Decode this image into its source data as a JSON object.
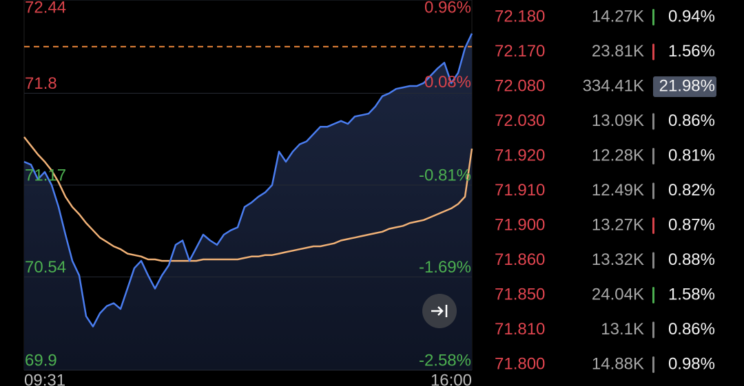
{
  "chart_data": {
    "type": "line",
    "xlim": [
      0,
      65
    ],
    "xticks": [
      {
        "value": 0,
        "label": "09:31"
      },
      {
        "value": 65,
        "label": "16:00"
      }
    ],
    "ylim": [
      69.9,
      72.44
    ],
    "yticks": [
      72.44,
      71.8,
      71.17,
      70.54,
      69.9
    ],
    "ytick_colors": [
      "#d9434a",
      "#d9434a",
      "#4caf50",
      "#4caf50",
      "#4caf50"
    ],
    "y2lim": [
      -2.58,
      0.96
    ],
    "y2ticks": [
      {
        "value": 0.96,
        "label": "0.96%"
      },
      {
        "value": 0.08,
        "label": "0.08%"
      },
      {
        "value": -0.81,
        "label": "-0.81%"
      },
      {
        "value": -1.69,
        "label": "-1.69%"
      },
      {
        "value": -2.58,
        "label": "-2.58%"
      }
    ],
    "grid": true,
    "reference_line": {
      "value": 72.12,
      "color": "#f08a3c"
    },
    "series": [
      {
        "color": "#4a7df0",
        "area": true,
        "values": [
          71.33,
          71.31,
          71.21,
          71.26,
          71.17,
          71.02,
          70.83,
          70.65,
          70.55,
          70.27,
          70.2,
          70.29,
          70.34,
          70.36,
          70.32,
          70.46,
          70.6,
          70.65,
          70.55,
          70.46,
          70.55,
          70.62,
          70.76,
          70.79,
          70.65,
          70.74,
          70.83,
          70.79,
          70.76,
          70.83,
          70.86,
          70.88,
          71.02,
          71.05,
          71.09,
          71.12,
          71.17,
          71.4,
          71.33,
          71.4,
          71.45,
          71.47,
          71.52,
          71.57,
          71.57,
          71.59,
          71.61,
          71.59,
          71.64,
          71.65,
          71.66,
          71.71,
          71.78,
          71.8,
          71.83,
          71.84,
          71.85,
          71.85,
          71.87,
          71.92,
          71.97,
          72.01,
          71.87,
          71.94,
          72.11,
          72.21
        ]
      },
      {
        "color": "#f2b277",
        "area": false,
        "values": [
          71.5,
          71.44,
          71.38,
          71.33,
          71.27,
          71.19,
          71.09,
          71.02,
          70.97,
          70.91,
          70.86,
          70.81,
          70.78,
          70.75,
          70.73,
          70.7,
          70.69,
          70.68,
          70.66,
          70.66,
          70.65,
          70.65,
          70.65,
          70.65,
          70.65,
          70.65,
          70.66,
          70.66,
          70.66,
          70.66,
          70.66,
          70.66,
          70.67,
          70.68,
          70.68,
          70.69,
          70.69,
          70.7,
          70.71,
          70.72,
          70.73,
          70.74,
          70.75,
          70.75,
          70.76,
          70.77,
          70.79,
          70.8,
          70.81,
          70.82,
          70.83,
          70.84,
          70.85,
          70.87,
          70.88,
          70.89,
          70.91,
          70.92,
          70.93,
          70.95,
          70.97,
          70.99,
          71.01,
          71.04,
          71.09,
          71.42
        ]
      }
    ]
  },
  "order_book": {
    "rows": [
      {
        "price": "72.180",
        "volume": "14.27K",
        "pct": "0.94%",
        "bar": "#4caf50"
      },
      {
        "price": "72.170",
        "volume": "23.81K",
        "pct": "1.56%",
        "bar": "#d9434a"
      },
      {
        "price": "72.080",
        "volume": "334.41K",
        "pct": "21.98%",
        "bar": null,
        "highlight": true
      },
      {
        "price": "72.030",
        "volume": "13.09K",
        "pct": "0.86%",
        "bar": "#888"
      },
      {
        "price": "71.920",
        "volume": "12.28K",
        "pct": "0.81%",
        "bar": "#888"
      },
      {
        "price": "71.910",
        "volume": "12.49K",
        "pct": "0.82%",
        "bar": "#888"
      },
      {
        "price": "71.900",
        "volume": "13.27K",
        "pct": "0.87%",
        "bar": "#d9434a"
      },
      {
        "price": "71.860",
        "volume": "13.32K",
        "pct": "0.88%",
        "bar": "#888"
      },
      {
        "price": "71.850",
        "volume": "24.04K",
        "pct": "1.58%",
        "bar": "#4caf50"
      },
      {
        "price": "71.810",
        "volume": "13.1K",
        "pct": "0.86%",
        "bar": "#888"
      },
      {
        "price": "71.800",
        "volume": "14.88K",
        "pct": "0.98%",
        "bar": "#888"
      }
    ]
  }
}
